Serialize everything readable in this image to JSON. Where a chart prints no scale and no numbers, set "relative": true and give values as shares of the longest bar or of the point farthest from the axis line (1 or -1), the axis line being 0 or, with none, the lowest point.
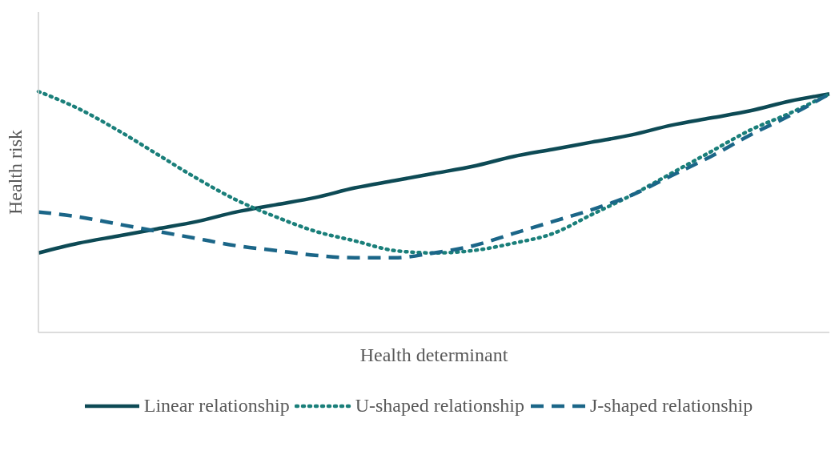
{
  "chart_data": {
    "type": "line",
    "relative": true,
    "xlabel": "Health determinant",
    "ylabel": "Health risk",
    "legend": "bottom",
    "grid": false,
    "marker": "none",
    "categories": [
      null,
      null,
      null,
      null,
      null,
      null,
      null,
      null,
      null,
      null,
      null,
      null,
      null,
      null,
      null,
      null,
      null,
      null,
      null,
      null,
      null
    ],
    "series": [
      {
        "name": "Linear relationship",
        "color": "#0d4a55",
        "line_style": "solid",
        "values": [
          0.33,
          0.37,
          0.4,
          0.43,
          0.46,
          0.5,
          0.53,
          0.56,
          0.6,
          0.63,
          0.66,
          0.69,
          0.73,
          0.76,
          0.79,
          0.82,
          0.86,
          0.89,
          0.92,
          0.96,
          0.99
        ]
      },
      {
        "name": "U-shaped relationship",
        "color": "#1a7f7a",
        "line_style": "dotted",
        "values": [
          1.0,
          0.93,
          0.84,
          0.74,
          0.64,
          0.55,
          0.48,
          0.42,
          0.38,
          0.34,
          0.33,
          0.34,
          0.37,
          0.41,
          0.49,
          0.57,
          0.66,
          0.75,
          0.84,
          0.91,
          0.99
        ]
      },
      {
        "name": "J-shaped relationship",
        "color": "#1b6688",
        "line_style": "dashed",
        "values": [
          0.5,
          0.48,
          0.45,
          0.42,
          0.39,
          0.36,
          0.34,
          0.32,
          0.31,
          0.31,
          0.33,
          0.36,
          0.41,
          0.46,
          0.51,
          0.57,
          0.65,
          0.73,
          0.82,
          0.9,
          0.99
        ]
      }
    ]
  }
}
